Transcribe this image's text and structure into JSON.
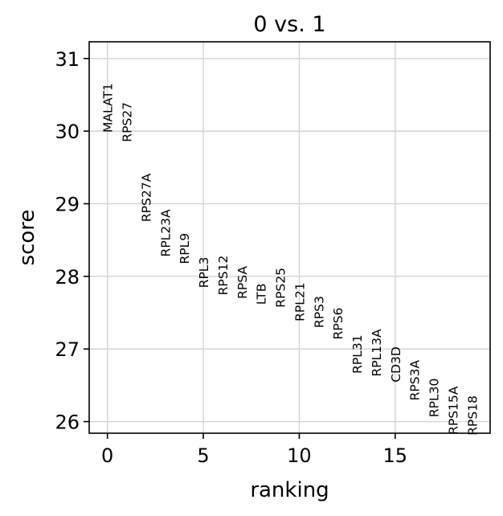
{
  "chart_data": {
    "type": "scatter",
    "title": "0 vs. 1",
    "xlabel": "ranking",
    "ylabel": "score",
    "xlim": [
      -0.95,
      19.95
    ],
    "ylim": [
      25.84,
      31.23
    ],
    "xticks": [
      0,
      5,
      10,
      15
    ],
    "xtick_labels": [
      "0",
      "5",
      "10",
      "15"
    ],
    "yticks": [
      26,
      27,
      28,
      29,
      30,
      31
    ],
    "ytick_labels": [
      "26",
      "27",
      "28",
      "29",
      "30",
      "31"
    ],
    "grid": true,
    "points": [
      {
        "rank": 0,
        "gene": "MALAT1",
        "score": 29.98
      },
      {
        "rank": 1,
        "gene": "RPS27",
        "score": 29.85
      },
      {
        "rank": 2,
        "gene": "RPS27A",
        "score": 28.75
      },
      {
        "rank": 3,
        "gene": "RPL23A",
        "score": 28.27
      },
      {
        "rank": 4,
        "gene": "RPL9",
        "score": 28.17
      },
      {
        "rank": 5,
        "gene": "RPL3",
        "score": 27.84
      },
      {
        "rank": 6,
        "gene": "RPS12",
        "score": 27.74
      },
      {
        "rank": 7,
        "gene": "RPSA",
        "score": 27.69
      },
      {
        "rank": 8,
        "gene": "LTB",
        "score": 27.61
      },
      {
        "rank": 9,
        "gene": "RPS25",
        "score": 27.57
      },
      {
        "rank": 10,
        "gene": "RPL21",
        "score": 27.38
      },
      {
        "rank": 11,
        "gene": "RPS3",
        "score": 27.29
      },
      {
        "rank": 12,
        "gene": "RPS6",
        "score": 27.13
      },
      {
        "rank": 13,
        "gene": "RPL31",
        "score": 26.66
      },
      {
        "rank": 14,
        "gene": "RPL13A",
        "score": 26.62
      },
      {
        "rank": 15,
        "gene": "CD3D",
        "score": 26.54
      },
      {
        "rank": 16,
        "gene": "RPS3A",
        "score": 26.29
      },
      {
        "rank": 17,
        "gene": "RPL30",
        "score": 26.06
      },
      {
        "rank": 18,
        "gene": "RPS15A",
        "score": 25.82
      },
      {
        "rank": 19,
        "gene": "RPS18",
        "score": 25.81
      }
    ]
  }
}
